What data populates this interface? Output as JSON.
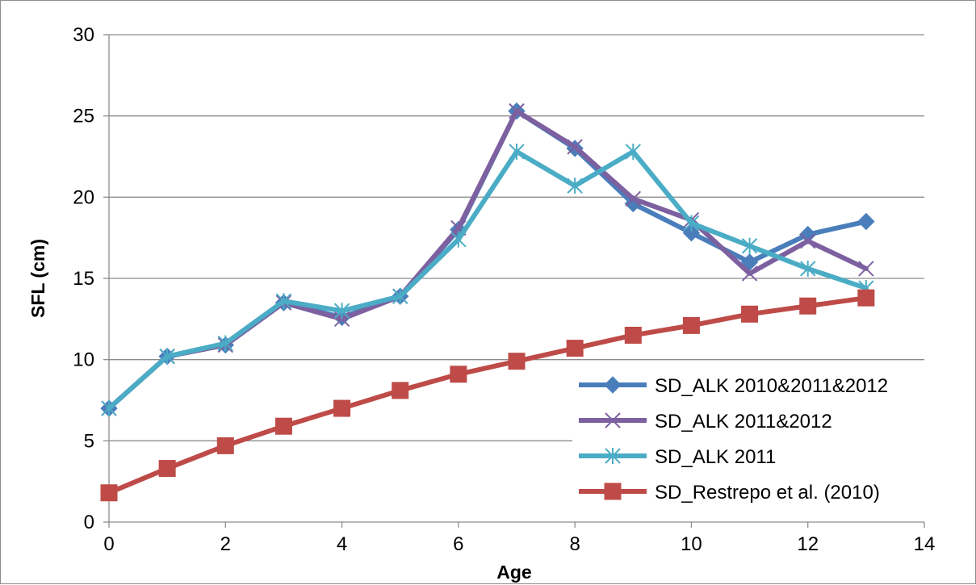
{
  "chart_data": {
    "type": "line",
    "title": "",
    "xlabel": "Age",
    "ylabel": "SFL (cm)",
    "xlim": [
      0,
      14
    ],
    "ylim": [
      0,
      30
    ],
    "xticks": [
      0,
      2,
      4,
      6,
      8,
      10,
      12,
      14
    ],
    "yticks": [
      0,
      5,
      10,
      15,
      20,
      25,
      30
    ],
    "grid": "horizontal",
    "legend": "bottom-right",
    "series": [
      {
        "name": "SD_ALK 2010&2011&2012",
        "color": "#4a7ebb",
        "marker": "diamond",
        "x": [
          0,
          1,
          2,
          3,
          4,
          5,
          6,
          7,
          8,
          9,
          10,
          11,
          12,
          13
        ],
        "y": [
          7.0,
          10.2,
          10.9,
          13.5,
          12.6,
          13.9,
          18.0,
          25.3,
          23.0,
          19.6,
          17.8,
          16.0,
          17.7,
          18.5
        ]
      },
      {
        "name": "SD_ALK 2011&2012",
        "color": "#7d60a0",
        "marker": "x",
        "x": [
          0,
          1,
          2,
          3,
          4,
          5,
          6,
          7,
          8,
          9,
          10,
          11,
          12,
          13
        ],
        "y": [
          7.0,
          10.2,
          10.9,
          13.5,
          12.5,
          13.9,
          18.1,
          25.3,
          23.1,
          19.9,
          18.6,
          15.3,
          17.3,
          15.6
        ]
      },
      {
        "name": "SD_ALK 2011",
        "color": "#4bacc6",
        "marker": "asterisk",
        "x": [
          0,
          1,
          2,
          3,
          4,
          5,
          6,
          7,
          8,
          9,
          10,
          11,
          12,
          13
        ],
        "y": [
          7.0,
          10.2,
          11.0,
          13.6,
          13.0,
          13.9,
          17.4,
          22.8,
          20.7,
          22.8,
          18.4,
          17.0,
          15.6,
          14.4
        ]
      },
      {
        "name": "SD_Restrepo et al. (2010)",
        "color": "#be4b48",
        "marker": "square",
        "x": [
          0,
          1,
          2,
          3,
          4,
          5,
          6,
          7,
          8,
          9,
          10,
          11,
          12,
          13
        ],
        "y": [
          1.8,
          3.3,
          4.7,
          5.9,
          7.0,
          8.1,
          9.1,
          9.9,
          10.7,
          11.5,
          12.1,
          12.8,
          13.3,
          13.8
        ]
      }
    ]
  }
}
